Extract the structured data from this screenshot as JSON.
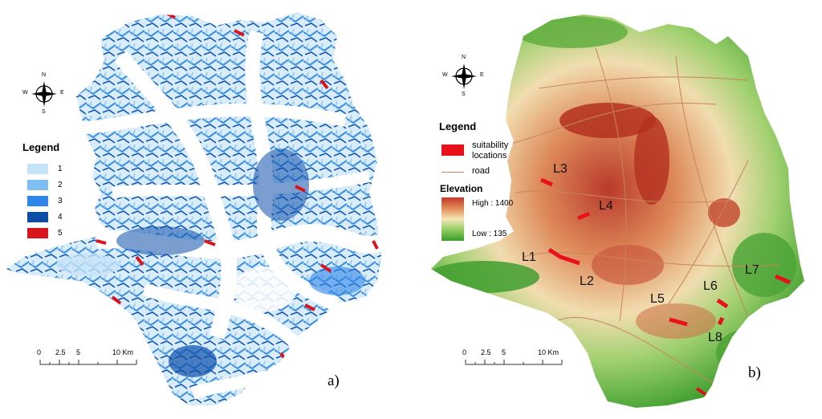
{
  "panel_a": {
    "compass": {
      "n": "N",
      "s": "S",
      "e": "E",
      "w": "W"
    },
    "legend": {
      "title": "Legend",
      "items": [
        {
          "label": "1",
          "color": "#c6e4f7"
        },
        {
          "label": "2",
          "color": "#7fbef0"
        },
        {
          "label": "3",
          "color": "#2e86e6"
        },
        {
          "label": "4",
          "color": "#0b4ea8"
        },
        {
          "label": "5",
          "color": "#d8141c"
        }
      ]
    },
    "scale": {
      "ticks": [
        "0",
        "2.5",
        "5",
        "10 Km"
      ]
    },
    "label": "a)"
  },
  "panel_b": {
    "compass": {
      "n": "N",
      "s": "S",
      "e": "E",
      "w": "W"
    },
    "legend": {
      "title": "Legend",
      "suitability": "suitability\nlocations",
      "suitability_color": "#e8101a",
      "road": "road",
      "road_color": "#c8845a",
      "elevation_title": "Elevation",
      "high": "High : 1400",
      "low": "Low : 135",
      "high_color": "#c0392b",
      "low_color": "#3a9a2a"
    },
    "locations": [
      "L1",
      "L2",
      "L3",
      "L4",
      "L5",
      "L6",
      "L7",
      "L8"
    ],
    "scale": {
      "ticks": [
        "0",
        "2.5",
        "5",
        "10 Km"
      ]
    },
    "label": "b)"
  }
}
